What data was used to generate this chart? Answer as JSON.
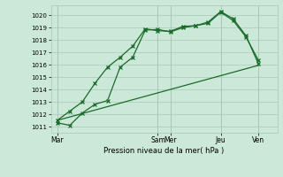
{
  "bg_color": "#cce8d8",
  "grid_color": "#aac8b8",
  "line_color": "#1a6b2a",
  "xlabel": "Pression niveau de la mer( hPa )",
  "ylim": [
    1010.5,
    1020.8
  ],
  "yticks": [
    1011,
    1012,
    1013,
    1014,
    1015,
    1016,
    1017,
    1018,
    1019,
    1020
  ],
  "day_labels": [
    "Mar",
    "Sam",
    "Mer",
    "Jeu",
    "Ven"
  ],
  "day_x": [
    0,
    8,
    9,
    13,
    16
  ],
  "xlim": [
    -0.5,
    17.5
  ],
  "line1_x": [
    0,
    1,
    2,
    3,
    4,
    5,
    6,
    7,
    8,
    9,
    10,
    11,
    12,
    13,
    14,
    15,
    16
  ],
  "line1_y": [
    1011.3,
    1011.1,
    1012.1,
    1012.8,
    1013.1,
    1015.8,
    1016.6,
    1018.8,
    1018.85,
    1018.65,
    1019.0,
    1019.15,
    1019.35,
    1020.25,
    1019.55,
    1018.25,
    1016.35
  ],
  "line2_x": [
    0,
    1,
    2,
    3,
    4,
    5,
    6,
    7,
    8,
    9,
    10,
    11,
    12,
    13,
    14,
    15,
    16
  ],
  "line2_y": [
    1011.5,
    1012.25,
    1013.0,
    1014.5,
    1015.8,
    1016.6,
    1017.5,
    1018.9,
    1018.75,
    1018.7,
    1019.1,
    1019.15,
    1019.45,
    1020.3,
    1019.7,
    1018.35,
    1016.05
  ],
  "line3_x": [
    0,
    16
  ],
  "line3_y": [
    1011.5,
    1015.95
  ]
}
